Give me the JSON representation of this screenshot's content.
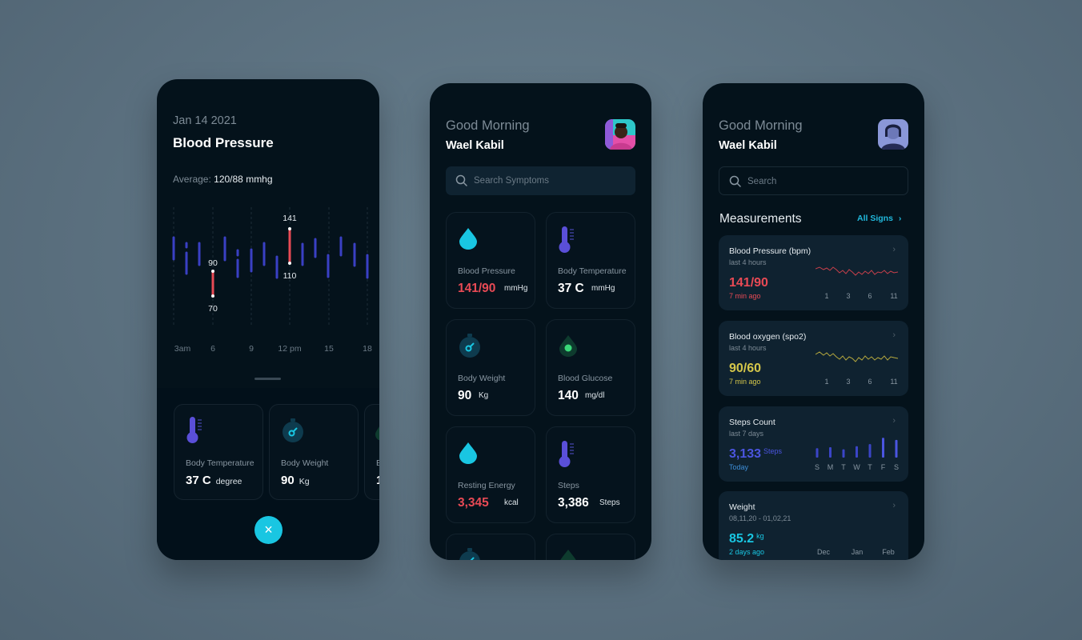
{
  "colors": {
    "background": "#5b7080",
    "card": "#04121b",
    "accent_cyan": "#19c6e2",
    "accent_red": "#e84a55",
    "accent_yellow": "#d4c64a",
    "accent_purple": "#5a4fd8",
    "chart_blue": "#3b45c7"
  },
  "screen1": {
    "date": "Jan 14 2021",
    "title": "Blood Pressure",
    "average_label": "Average:",
    "average_value": "120/88 mmhg",
    "chart_labels": {
      "high_left": "90",
      "low_left": "70",
      "high_mid": "141",
      "low_mid": "110"
    },
    "x_ticks": [
      "3am",
      "6",
      "9",
      "12 pm",
      "15",
      "18"
    ],
    "cards": [
      {
        "icon": "thermometer-icon",
        "label": "Body Temperature",
        "value": "37 C",
        "unit": "degree"
      },
      {
        "icon": "stopwatch-icon",
        "label": "Body Weight",
        "value": "90",
        "unit": "Kg"
      },
      {
        "icon": "drop-icon",
        "label": "B",
        "value": "1",
        "unit": ""
      }
    ],
    "close_icon": "×"
  },
  "screen2": {
    "greeting": "Good Morning",
    "user": "Wael Kabil",
    "search_placeholder": "Search Symptoms",
    "tiles": [
      {
        "icon": "water-drop-icon",
        "label": "Blood Pressure",
        "value": "141/90",
        "unit": "mmHg"
      },
      {
        "icon": "thermometer-icon",
        "label": "Body Temperature",
        "value": "37 C",
        "unit": "mmHg"
      },
      {
        "icon": "stopwatch-icon",
        "label": "Body Weight",
        "value": "90",
        "unit": "Kg"
      },
      {
        "icon": "glucose-drop-icon",
        "label": "Blood Glucose",
        "value": "140",
        "unit": "mg/dl"
      },
      {
        "icon": "water-drop-icon",
        "label": "Resting Energy",
        "value": "3,345",
        "unit": "kcal"
      },
      {
        "icon": "thermometer-icon",
        "label": "Steps",
        "value": "3,386",
        "unit": "Steps"
      }
    ]
  },
  "screen3": {
    "greeting": "Good Morning",
    "user": "Wael Kabil",
    "search_placeholder": "Search",
    "section_title": "Measurements",
    "all_signs": "All Signs",
    "cards": [
      {
        "title": "Blood Pressure (bpm)",
        "sub": "last 4 hours",
        "value": "141/90",
        "ago": "7 min ago",
        "ticks": [
          "1",
          "3",
          "6",
          "11"
        ]
      },
      {
        "title": "Blood oxygen (spo2)",
        "sub": "last 4 hours",
        "value": "90/60",
        "ago": "7 min ago",
        "ticks": [
          "1",
          "3",
          "6",
          "11"
        ]
      },
      {
        "title": "Steps Count",
        "sub": "last 7 days",
        "value": "3,133",
        "unit": "Steps",
        "ago": "Today",
        "ticks": [
          "S",
          "M",
          "T",
          "W",
          "T",
          "F",
          "S"
        ],
        "bars": [
          0.45,
          0.5,
          0.4,
          0.55,
          0.65,
          0.95,
          0.85
        ]
      },
      {
        "title": "Weight",
        "sub": "08,11,20 - 01,02,21",
        "value": "85.2",
        "unit": "kg",
        "ago": "2 days ago",
        "ticks": [
          "Dec",
          "Jan",
          "Feb"
        ]
      }
    ]
  }
}
